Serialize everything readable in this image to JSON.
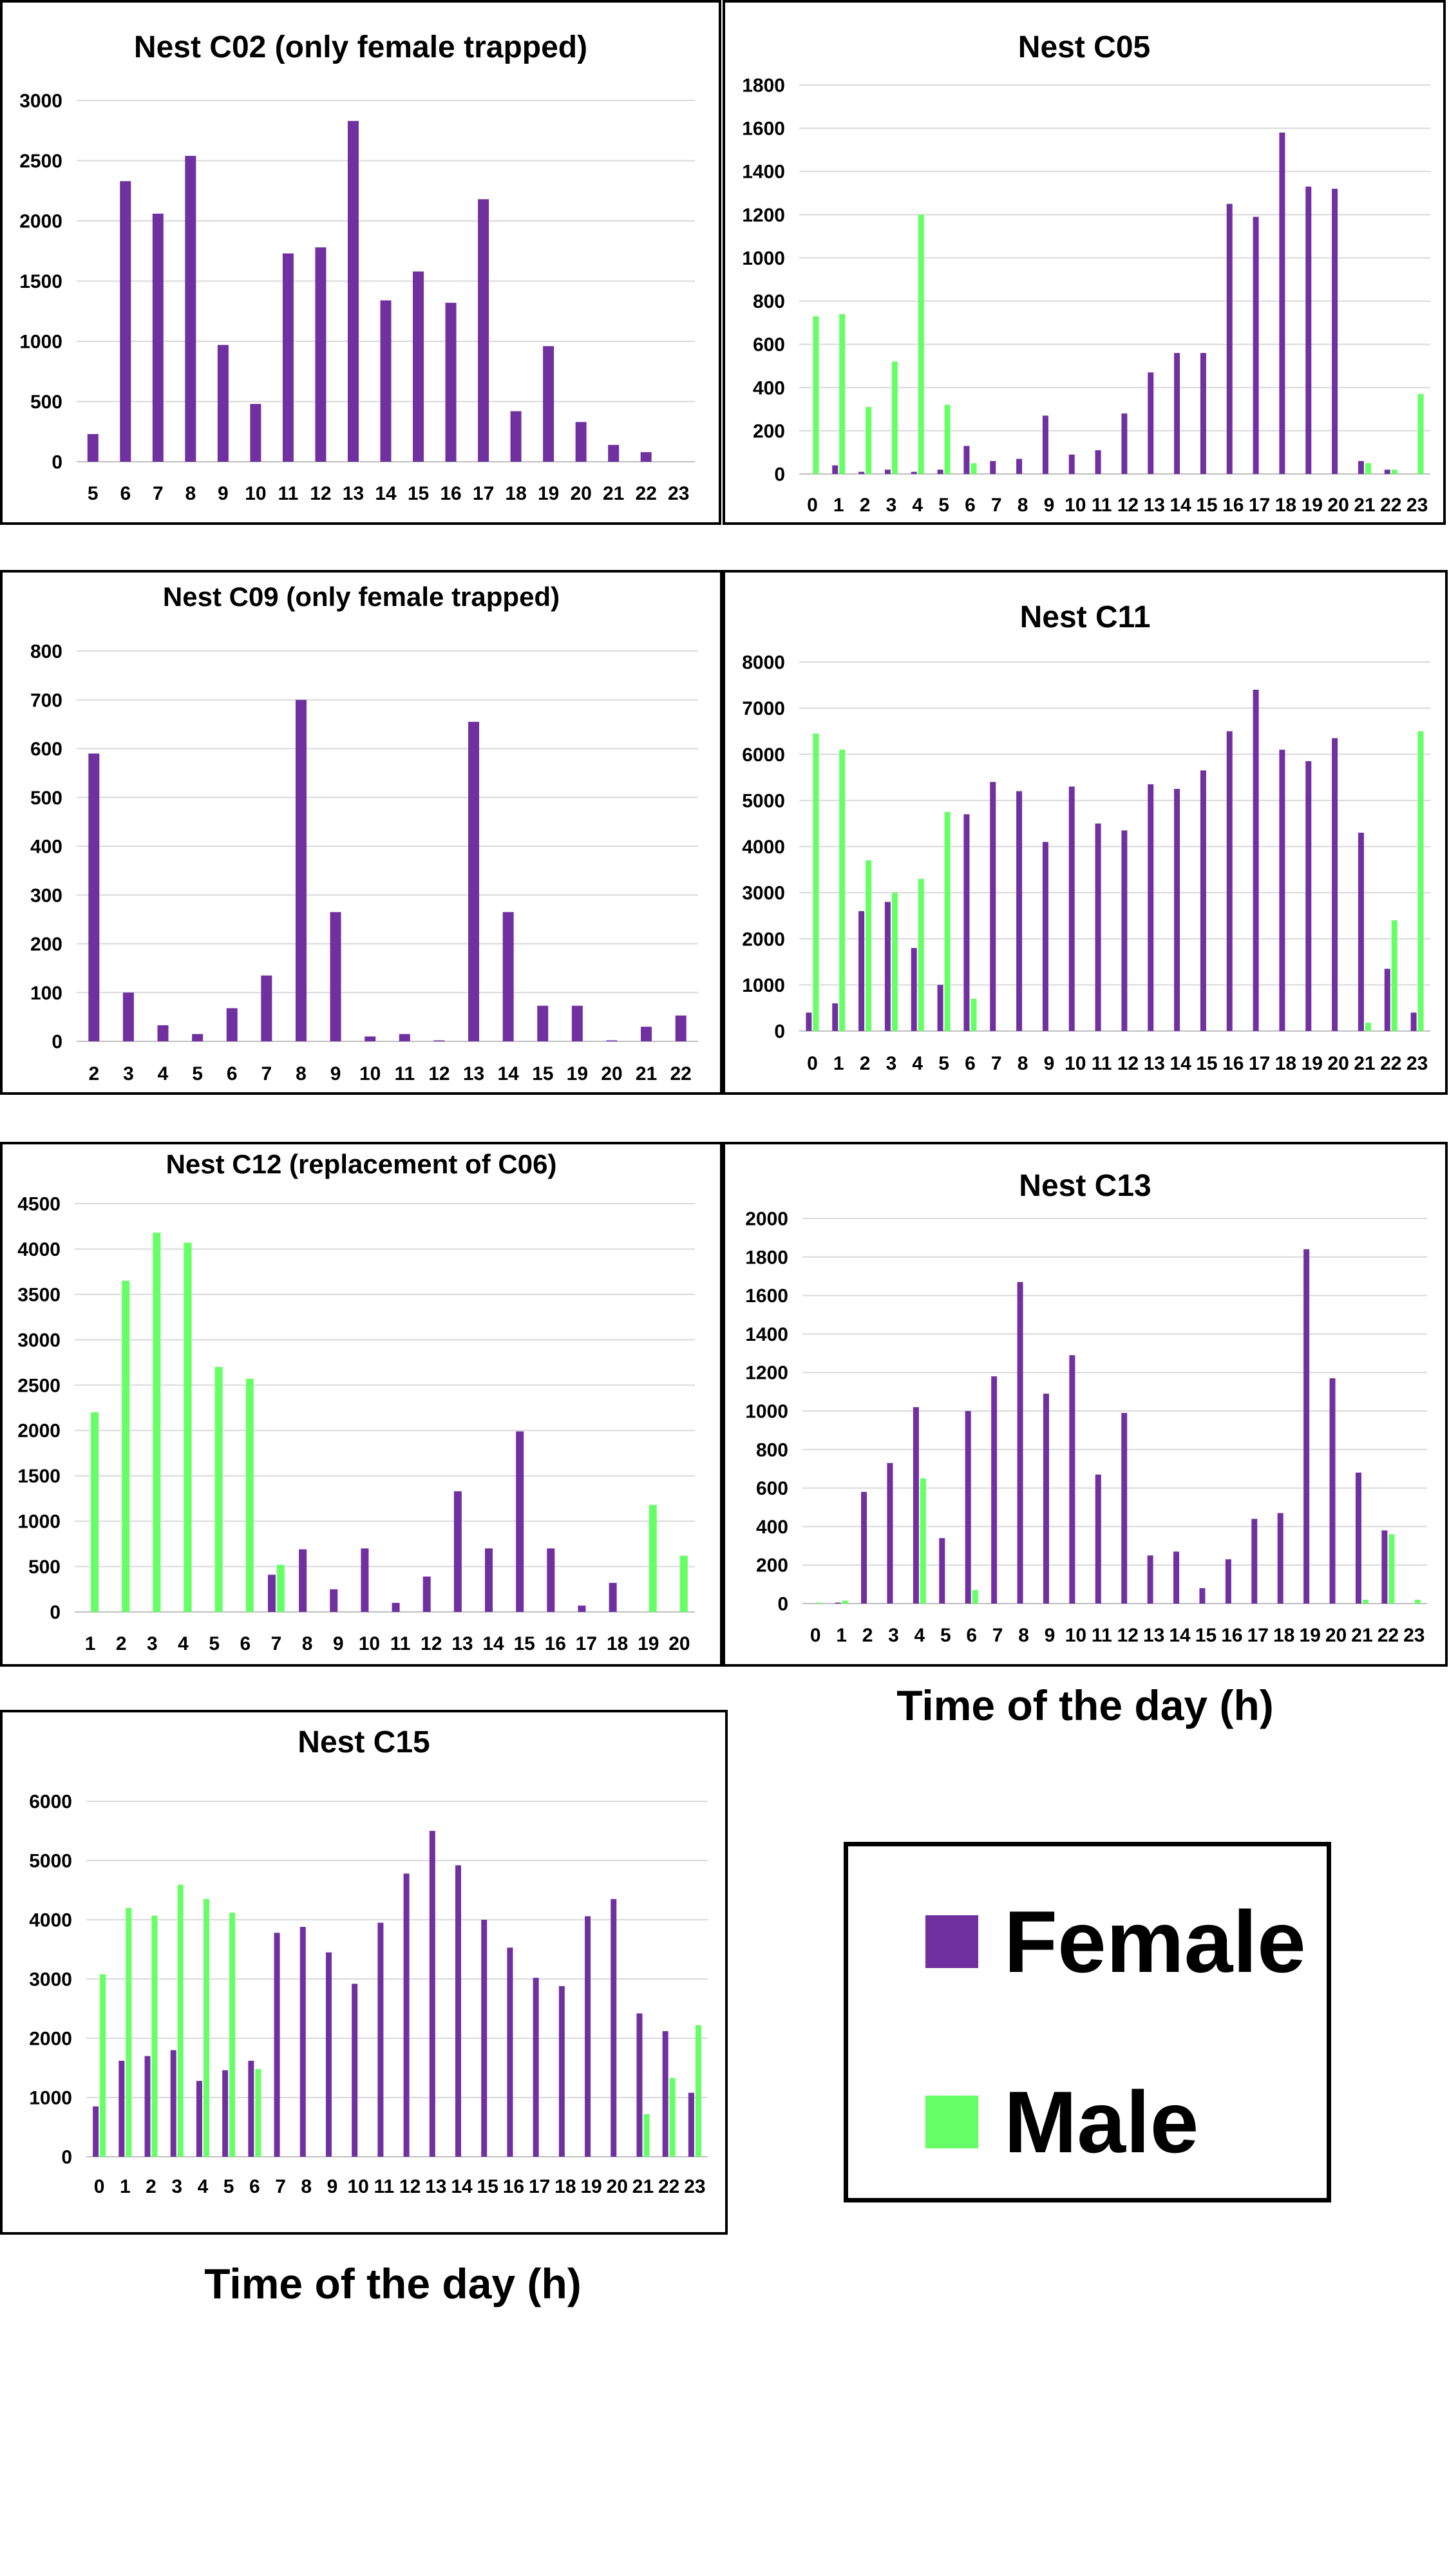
{
  "colors": {
    "female": "#7030a0",
    "male": "#66ff66"
  },
  "legend": {
    "female_label": "Female",
    "male_label": "Male"
  },
  "x_caption_top": "Time of the day (h)",
  "x_caption_bottom": "Time of the day (h)",
  "chart_data": [
    {
      "id": "c02",
      "type": "bar",
      "title": "Nest C02 (only female trapped)",
      "ylim": [
        0,
        3000
      ],
      "yticks": [
        0,
        500,
        1000,
        1500,
        2000,
        2500,
        3000
      ],
      "categories": [
        "5",
        "6",
        "7",
        "8",
        "9",
        "10",
        "11",
        "12",
        "13",
        "14",
        "15",
        "16",
        "17",
        "18",
        "19",
        "20",
        "21",
        "22",
        "23"
      ],
      "series": [
        {
          "name": "Female",
          "values": [
            230,
            2330,
            2060,
            2540,
            970,
            480,
            1730,
            1780,
            2830,
            1340,
            1580,
            1320,
            2180,
            420,
            960,
            330,
            140,
            80,
            0
          ]
        }
      ]
    },
    {
      "id": "c05",
      "type": "bar",
      "title": "Nest C05",
      "ylim": [
        0,
        1800
      ],
      "yticks": [
        0,
        200,
        400,
        600,
        800,
        1000,
        1200,
        1400,
        1600,
        1800
      ],
      "categories": [
        "0",
        "1",
        "2",
        "3",
        "4",
        "5",
        "6",
        "7",
        "8",
        "9",
        "10",
        "11",
        "12",
        "13",
        "14",
        "15",
        "16",
        "17",
        "18",
        "19",
        "20",
        "21",
        "22",
        "23"
      ],
      "series": [
        {
          "name": "Female",
          "values": [
            0,
            40,
            10,
            20,
            10,
            20,
            130,
            60,
            70,
            270,
            90,
            110,
            280,
            470,
            560,
            560,
            1250,
            1190,
            1580,
            1330,
            1320,
            60,
            20,
            0
          ]
        },
        {
          "name": "Male",
          "values": [
            730,
            740,
            310,
            520,
            1200,
            320,
            50,
            0,
            0,
            0,
            0,
            0,
            0,
            0,
            0,
            0,
            0,
            0,
            0,
            0,
            0,
            50,
            20,
            370
          ]
        }
      ]
    },
    {
      "id": "c09",
      "type": "bar",
      "title": "Nest C09 (only female trapped)",
      "ylim": [
        0,
        800
      ],
      "yticks": [
        0,
        100,
        200,
        300,
        400,
        500,
        600,
        700,
        800
      ],
      "categories": [
        "2",
        "3",
        "4",
        "5",
        "6",
        "7",
        "8",
        "9",
        "10",
        "11",
        "12",
        "13",
        "14",
        "15",
        "19",
        "20",
        "21",
        "22"
      ],
      "series": [
        {
          "name": "Female",
          "values": [
            590,
            100,
            33,
            15,
            68,
            135,
            700,
            265,
            10,
            15,
            2,
            655,
            265,
            73,
            73,
            2,
            30,
            53
          ]
        }
      ]
    },
    {
      "id": "c11",
      "type": "bar",
      "title": "Nest C11",
      "ylim": [
        0,
        8000
      ],
      "yticks": [
        0,
        1000,
        2000,
        3000,
        4000,
        5000,
        6000,
        7000,
        8000
      ],
      "categories": [
        "0",
        "1",
        "2",
        "3",
        "4",
        "5",
        "6",
        "7",
        "8",
        "9",
        "10",
        "11",
        "12",
        "13",
        "14",
        "15",
        "16",
        "17",
        "18",
        "19",
        "20",
        "21",
        "22",
        "23"
      ],
      "series": [
        {
          "name": "Female",
          "values": [
            400,
            600,
            2600,
            2800,
            1800,
            1000,
            4700,
            5400,
            5200,
            4100,
            5300,
            4500,
            4350,
            5350,
            5250,
            5650,
            6500,
            7400,
            6100,
            5850,
            6350,
            4300,
            1350,
            400
          ]
        },
        {
          "name": "Male",
          "values": [
            6450,
            6100,
            3700,
            3000,
            3300,
            4750,
            700,
            0,
            0,
            0,
            0,
            0,
            0,
            0,
            0,
            0,
            0,
            0,
            0,
            0,
            0,
            180,
            2400,
            6500
          ]
        }
      ]
    },
    {
      "id": "c12",
      "type": "bar",
      "title": "Nest C12 (replacement of C06)",
      "ylim": [
        0,
        4500
      ],
      "yticks": [
        0,
        500,
        1000,
        1500,
        2000,
        2500,
        3000,
        3500,
        4000,
        4500
      ],
      "categories": [
        "1",
        "2",
        "3",
        "4",
        "5",
        "6",
        "7",
        "8",
        "9",
        "10",
        "11",
        "12",
        "13",
        "14",
        "15",
        "16",
        "17",
        "18",
        "19",
        "20"
      ],
      "series": [
        {
          "name": "Female",
          "values": [
            0,
            0,
            0,
            0,
            0,
            0,
            410,
            690,
            250,
            700,
            100,
            390,
            1330,
            700,
            1990,
            700,
            70,
            320,
            0,
            0
          ]
        },
        {
          "name": "Male",
          "values": [
            2200,
            3650,
            4180,
            4070,
            2700,
            2570,
            520,
            0,
            0,
            0,
            0,
            0,
            0,
            0,
            0,
            0,
            0,
            0,
            1180,
            620
          ]
        }
      ]
    },
    {
      "id": "c13",
      "type": "bar",
      "title": "Nest C13",
      "ylim": [
        0,
        2000
      ],
      "yticks": [
        0,
        200,
        400,
        600,
        800,
        1000,
        1200,
        1400,
        1600,
        1800,
        2000
      ],
      "categories": [
        "0",
        "1",
        "2",
        "3",
        "4",
        "5",
        "6",
        "7",
        "8",
        "9",
        "10",
        "11",
        "12",
        "13",
        "14",
        "15",
        "16",
        "17",
        "18",
        "19",
        "20",
        "21",
        "22",
        "23"
      ],
      "series": [
        {
          "name": "Female",
          "values": [
            0,
            5,
            580,
            730,
            1020,
            340,
            1000,
            1180,
            1670,
            1090,
            1290,
            670,
            990,
            250,
            270,
            80,
            230,
            440,
            470,
            1840,
            1170,
            680,
            380,
            0
          ]
        },
        {
          "name": "Male",
          "values": [
            5,
            15,
            0,
            0,
            650,
            0,
            70,
            0,
            0,
            0,
            0,
            0,
            0,
            0,
            0,
            0,
            0,
            0,
            0,
            0,
            0,
            20,
            360,
            20
          ]
        }
      ]
    },
    {
      "id": "c15",
      "type": "bar",
      "title": "Nest C15",
      "ylim": [
        0,
        6000
      ],
      "yticks": [
        0,
        1000,
        2000,
        3000,
        4000,
        5000,
        6000
      ],
      "categories": [
        "0",
        "1",
        "2",
        "3",
        "4",
        "5",
        "6",
        "7",
        "8",
        "9",
        "10",
        "11",
        "12",
        "13",
        "14",
        "15",
        "16",
        "17",
        "18",
        "19",
        "20",
        "21",
        "22",
        "23"
      ],
      "series": [
        {
          "name": "Female",
          "values": [
            850,
            1620,
            1700,
            1800,
            1280,
            1460,
            1620,
            3780,
            3880,
            3450,
            2920,
            3950,
            4780,
            5500,
            4920,
            4000,
            3530,
            3020,
            2880,
            4060,
            4350,
            2420,
            2120,
            1080
          ]
        },
        {
          "name": "Male",
          "values": [
            3080,
            4200,
            4070,
            4590,
            4350,
            4120,
            1480,
            0,
            0,
            0,
            0,
            0,
            0,
            0,
            0,
            0,
            0,
            0,
            0,
            0,
            0,
            720,
            1330,
            2220
          ]
        }
      ]
    }
  ]
}
